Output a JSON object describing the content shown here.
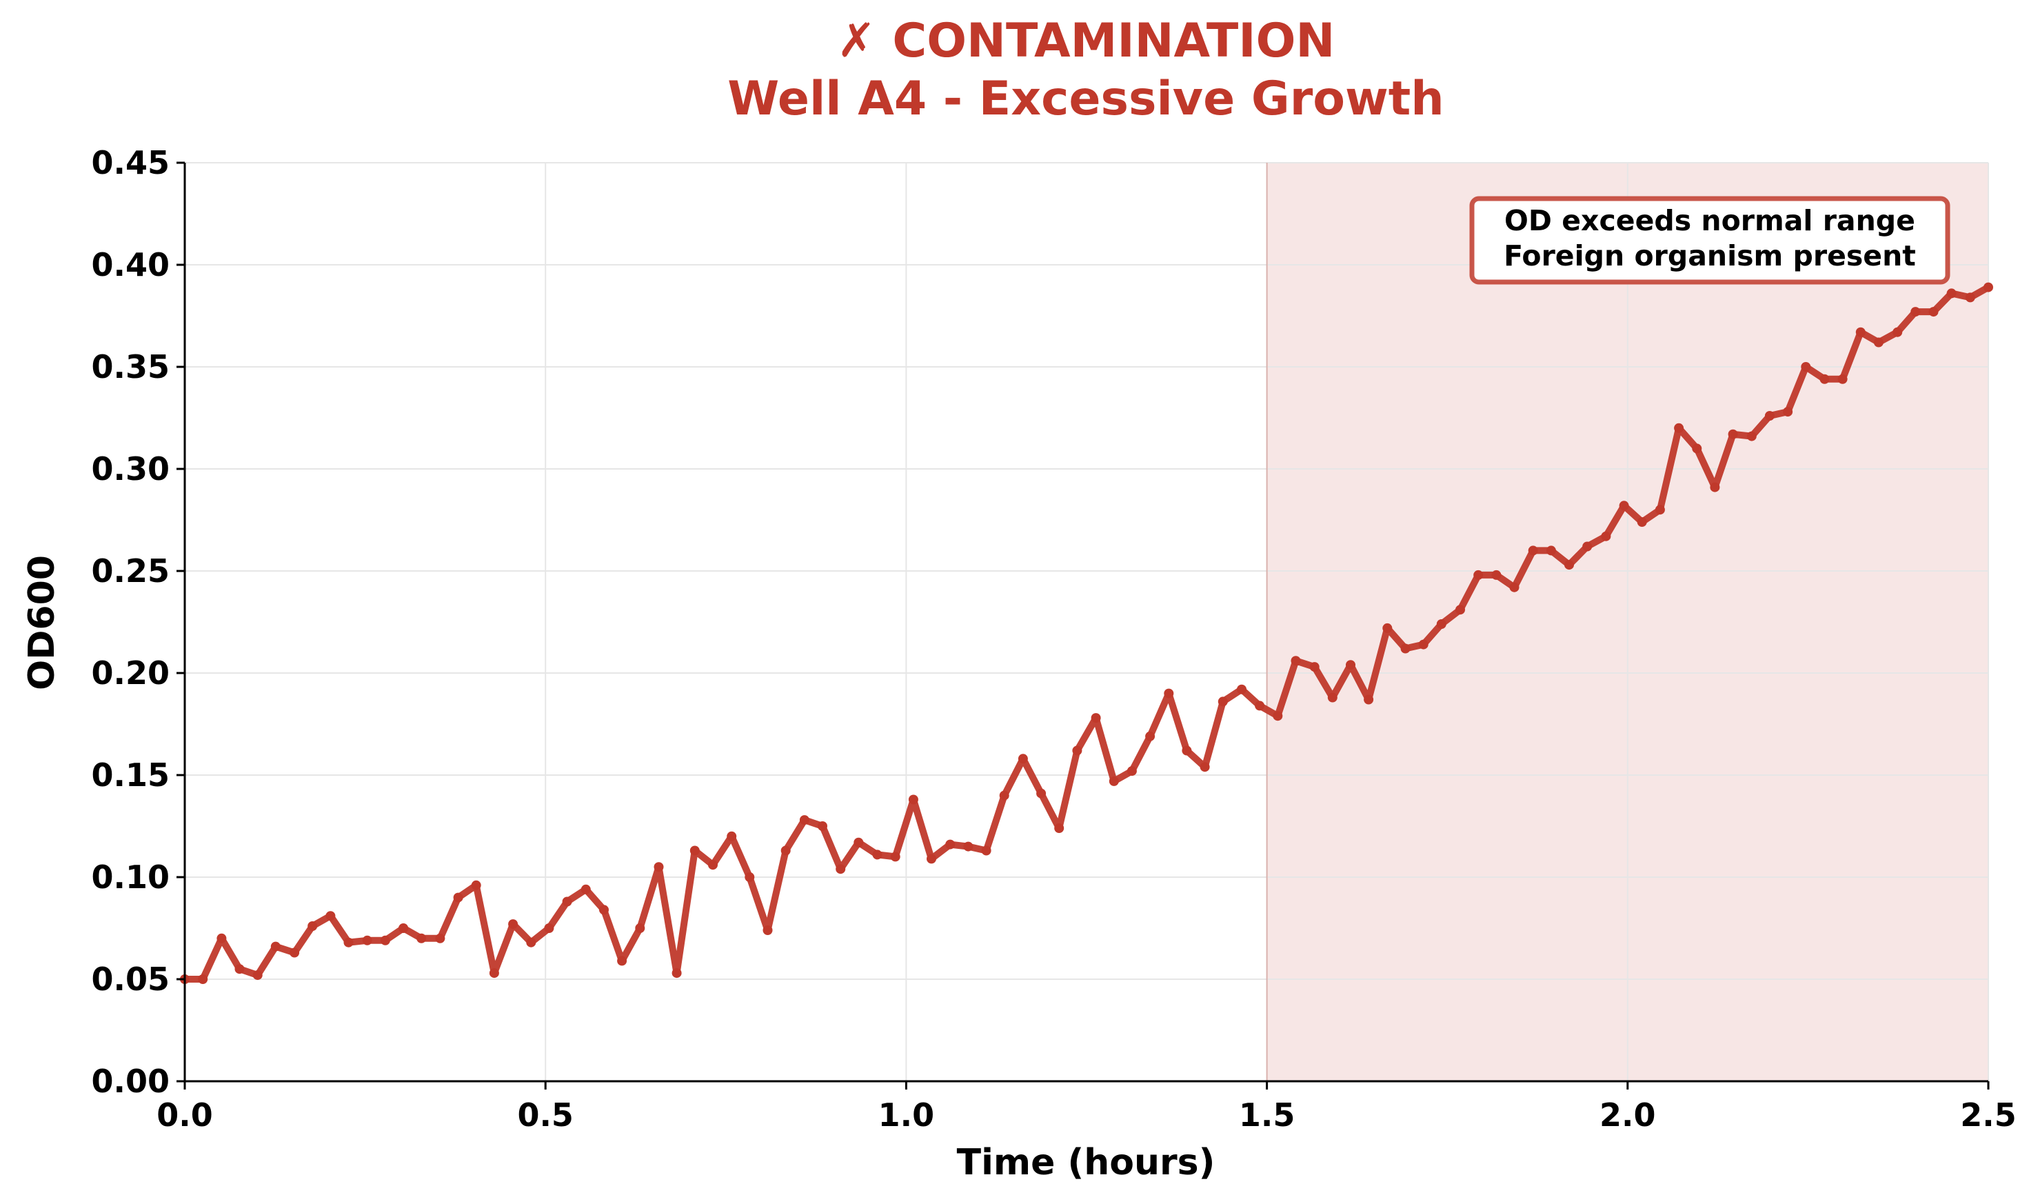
{
  "chart_data": {
    "type": "line",
    "title": "✗ CONTAMINATION",
    "subtitle": "Well A4 - Excessive Growth",
    "xlabel": "Time (hours)",
    "ylabel": "OD600",
    "xlim": [
      0,
      2.5
    ],
    "ylim": [
      0,
      0.45
    ],
    "x_ticks": [
      "0.0",
      "0.5",
      "1.0",
      "1.5",
      "2.0",
      "2.5"
    ],
    "y_ticks": [
      "0.00",
      "0.05",
      "0.10",
      "0.15",
      "0.20",
      "0.25",
      "0.30",
      "0.35",
      "0.40",
      "0.45"
    ],
    "grid": true,
    "shaded_region": {
      "x_start": 1.5,
      "x_end": 2.5
    },
    "annotation": {
      "lines": [
        "OD exceeds normal range",
        "Foreign organism present"
      ],
      "position": "top-right"
    },
    "colors": {
      "line": "#c0392b",
      "title": "#c0392b",
      "shade": "#f7e6e5",
      "grid": "#e6e6e6"
    },
    "series": [
      {
        "x": [
          0.0,
          0.025,
          0.051,
          0.076,
          0.101,
          0.126,
          0.152,
          0.177,
          0.202,
          0.227,
          0.253,
          0.278,
          0.303,
          0.328,
          0.354,
          0.379,
          0.404,
          0.429,
          0.455,
          0.48,
          0.505,
          0.53,
          0.556,
          0.581,
          0.606,
          0.631,
          0.657,
          0.682,
          0.707,
          0.732,
          0.758,
          0.783,
          0.808,
          0.833,
          0.859,
          0.884,
          0.909,
          0.934,
          0.96,
          0.985,
          1.01,
          1.035,
          1.061,
          1.086,
          1.111,
          1.136,
          1.162,
          1.187,
          1.212,
          1.237,
          1.263,
          1.288,
          1.313,
          1.338,
          1.364,
          1.389,
          1.414,
          1.439,
          1.465,
          1.49,
          1.515,
          1.54,
          1.566,
          1.591,
          1.616,
          1.641,
          1.667,
          1.692,
          1.717,
          1.742,
          1.768,
          1.793,
          1.818,
          1.843,
          1.869,
          1.894,
          1.919,
          1.944,
          1.97,
          1.995,
          2.02,
          2.045,
          2.071,
          2.096,
          2.121,
          2.146,
          2.172,
          2.197,
          2.222,
          2.247,
          2.273,
          2.298,
          2.323,
          2.348,
          2.374,
          2.399,
          2.424,
          2.449,
          2.475,
          2.5
        ],
        "y": [
          0.05,
          0.05,
          0.07,
          0.055,
          0.052,
          0.066,
          0.063,
          0.076,
          0.081,
          0.068,
          0.069,
          0.069,
          0.075,
          0.07,
          0.07,
          0.09,
          0.096,
          0.053,
          0.077,
          0.068,
          0.075,
          0.088,
          0.094,
          0.084,
          0.059,
          0.075,
          0.105,
          0.053,
          0.113,
          0.106,
          0.12,
          0.1,
          0.074,
          0.113,
          0.128,
          0.125,
          0.104,
          0.117,
          0.111,
          0.11,
          0.138,
          0.109,
          0.116,
          0.115,
          0.113,
          0.14,
          0.158,
          0.141,
          0.124,
          0.162,
          0.178,
          0.147,
          0.152,
          0.169,
          0.19,
          0.162,
          0.154,
          0.186,
          0.192,
          0.184,
          0.179,
          0.206,
          0.203,
          0.188,
          0.204,
          0.187,
          0.222,
          0.212,
          0.214,
          0.224,
          0.231,
          0.248,
          0.248,
          0.242,
          0.26,
          0.26,
          0.253,
          0.262,
          0.267,
          0.282,
          0.274,
          0.28,
          0.32,
          0.31,
          0.291,
          0.317,
          0.316,
          0.326,
          0.328,
          0.35,
          0.344,
          0.344,
          0.367,
          0.362,
          0.367,
          0.377,
          0.377,
          0.386,
          0.384,
          0.389
        ]
      }
    ]
  }
}
